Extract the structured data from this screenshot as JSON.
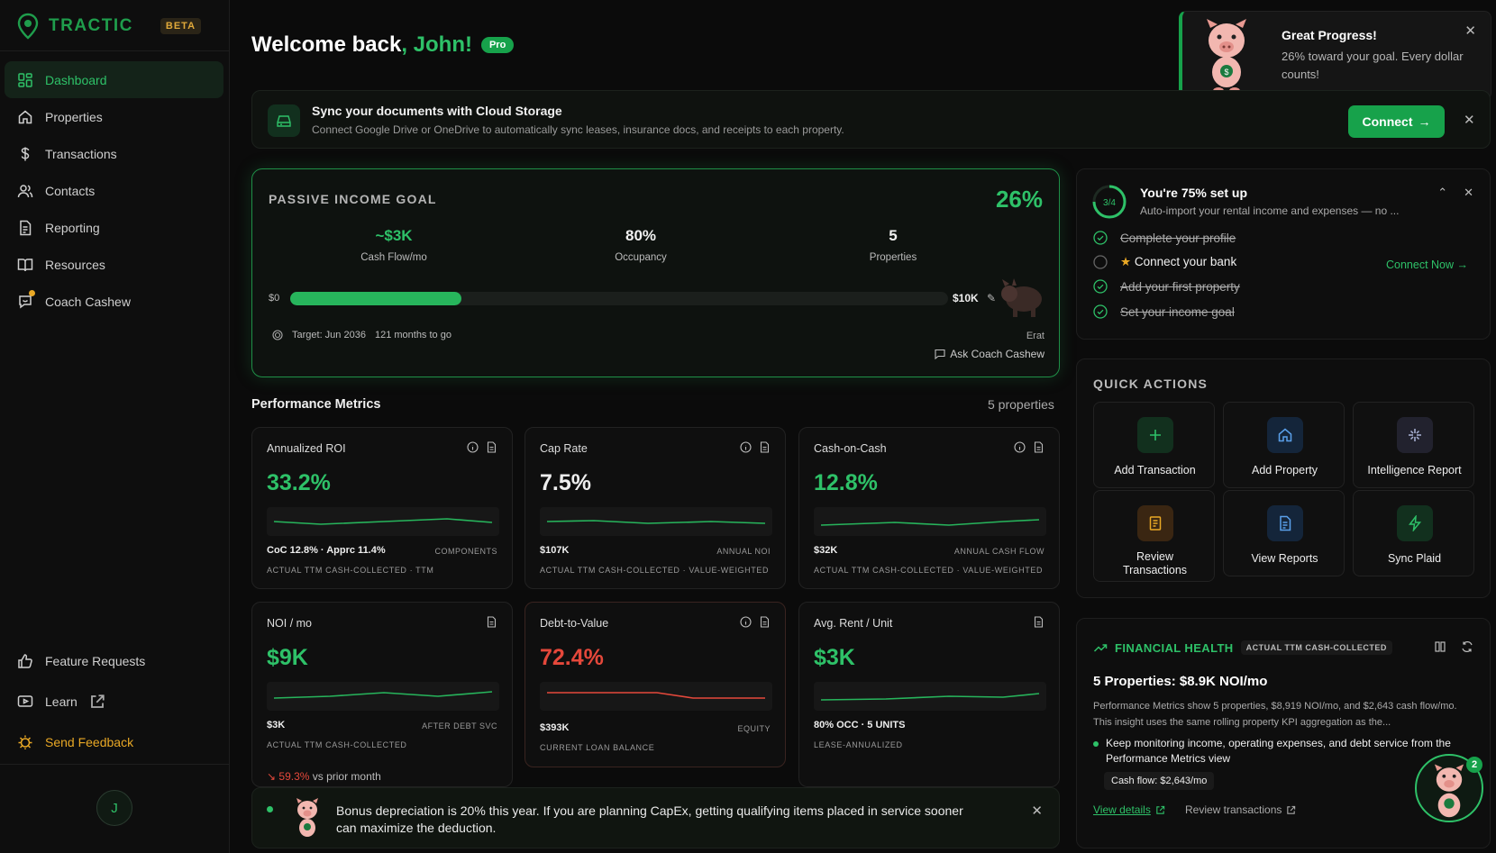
{
  "brand": {
    "name": "TRACTIC",
    "badge": "BETA"
  },
  "sidebar": {
    "items": [
      {
        "label": "Dashboard",
        "icon": "grid-icon"
      },
      {
        "label": "Properties",
        "icon": "home-icon"
      },
      {
        "label": "Transactions",
        "icon": "dollar-icon"
      },
      {
        "label": "Contacts",
        "icon": "users-icon"
      },
      {
        "label": "Reporting",
        "icon": "document-icon"
      },
      {
        "label": "Resources",
        "icon": "book-icon"
      },
      {
        "label": "Coach Cashew",
        "icon": "coach-icon"
      }
    ],
    "bottom": [
      {
        "label": "Feature Requests",
        "icon": "thumbs-up-icon"
      },
      {
        "label": "Learn",
        "icon": "play-icon"
      },
      {
        "label": "Send Feedback",
        "icon": "bug-icon"
      }
    ],
    "avatar_initial": "J"
  },
  "header": {
    "welcome": "Welcome back",
    "name": ", John!",
    "plan": "Pro"
  },
  "sync_banner": {
    "title": "Sync your documents with Cloud Storage",
    "subtitle": "Connect Google Drive or OneDrive to automatically sync leases, insurance docs, and receipts to each property.",
    "button": "Connect"
  },
  "toast": {
    "title": "Great Progress!",
    "body": "26% toward your goal. Every dollar counts!"
  },
  "goal": {
    "label": "PASSIVE INCOME GOAL",
    "percent": "26%",
    "progress": 0.26,
    "stats": [
      {
        "value": "~$3K",
        "label": "Cash Flow/mo"
      },
      {
        "value": "80%",
        "label": "Occupancy"
      },
      {
        "value": "5",
        "label": "Properties"
      }
    ],
    "min": "$0",
    "max": "$10K",
    "target": "Target: Jun 2036",
    "months": "121 months to go",
    "erat": "Erat",
    "ask": "Ask Coach Cashew"
  },
  "metrics": {
    "title": "Performance Metrics",
    "count": "5 properties",
    "cards": [
      {
        "title": "Annualized ROI",
        "value": "33.2%",
        "kv": "CoC 12.8% · Apprc 11.4%",
        "kr": "COMPONENTS",
        "foot": "ACTUAL TTM CASH-COLLECTED · TTM"
      },
      {
        "title": "Cap Rate",
        "value": "7.5%",
        "kv": "$107K",
        "kr": "ANNUAL NOI",
        "foot": "ACTUAL TTM CASH-COLLECTED · VALUE-WEIGHTED"
      },
      {
        "title": "Cash-on-Cash",
        "value": "12.8%",
        "kv": "$32K",
        "kr": "ANNUAL CASH FLOW",
        "foot": "ACTUAL TTM CASH-COLLECTED · VALUE-WEIGHTED"
      },
      {
        "title": "NOI / mo",
        "value": "$9K",
        "kv": "$3K",
        "kr": "AFTER DEBT SVC",
        "foot": "ACTUAL TTM CASH-COLLECTED",
        "delta": "↘ 59.3%",
        "delta_rest": " vs prior month"
      },
      {
        "title": "Debt-to-Value",
        "value": "72.4%",
        "kv": "$393K",
        "kr": "EQUITY",
        "foot": "CURRENT LOAN BALANCE"
      },
      {
        "title": "Avg. Rent / Unit",
        "value": "$3K",
        "kv": "80% OCC · 5 UNITS",
        "kr": "",
        "foot": "LEASE-ANNUALIZED"
      }
    ]
  },
  "notice": {
    "text": "Bonus depreciation is 20% this year. If you are planning CapEx, getting qualifying items placed in service sooner can maximize the deduction."
  },
  "setup": {
    "ring": "3/4",
    "title": "You're 75% set up",
    "subtitle": "Auto-import your rental income and expenses — no ...",
    "items": [
      {
        "label": "Complete your profile",
        "done": true
      },
      {
        "label": "Connect your bank",
        "done": false
      },
      {
        "label": "Add your first property",
        "done": true
      },
      {
        "label": "Set your income goal",
        "done": true
      }
    ],
    "connect_now": "Connect Now →"
  },
  "quick_actions": {
    "title": "QUICK ACTIONS",
    "tiles": [
      {
        "label": "Add Transaction",
        "icon": "plus-icon",
        "color": "#12301e"
      },
      {
        "label": "Add Property",
        "icon": "home-icon",
        "color": "#14253a"
      },
      {
        "label": "Intelligence Report",
        "icon": "sparkle-icon",
        "color": "#22222e"
      },
      {
        "label": "Review Transactions",
        "icon": "receipt-icon",
        "color": "#3a2612"
      },
      {
        "label": "View Reports",
        "icon": "file-icon",
        "color": "#14253a"
      },
      {
        "label": "Sync Plaid",
        "icon": "bolt-icon",
        "color": "#12301e"
      }
    ]
  },
  "financial_health": {
    "title": "FINANCIAL HEALTH",
    "badge": "ACTUAL TTM CASH-COLLECTED",
    "headline": "5 Properties: $8.9K NOI/mo",
    "paragraph": "Performance Metrics show 5 properties, $8,919 NOI/mo, and $2,643 cash flow/mo. This insight uses the same rolling property KPI aggregation as the...",
    "bullet": "Keep monitoring income, operating expenses, and debt service from the Performance Metrics view",
    "chip": "Cash flow: $2,643/mo",
    "link1": "View details",
    "link2": "Review transactions"
  },
  "coach_badge": "2",
  "colors": {
    "accent": "#2ec168",
    "brand": "#17a24b",
    "danger": "#e5483b",
    "warning": "#e9a825"
  }
}
